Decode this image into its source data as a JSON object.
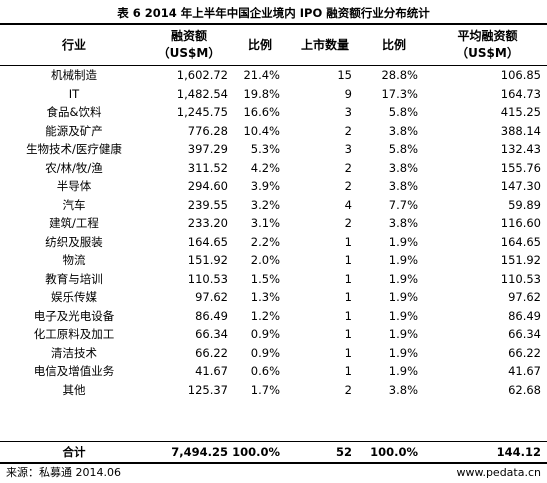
{
  "title": "表 6   2014 年上半年中国企业境内 IPO 融资额行业分布统计",
  "header": {
    "industry": "行业",
    "amount_line1": "融资额",
    "amount_line2": "（US$M）",
    "ratio1": "比例",
    "count": "上市数量",
    "ratio2": "比例",
    "avg_line1": "平均融资额",
    "avg_line2": "（US$M）"
  },
  "rows": [
    {
      "industry": "机械制造",
      "amount": "1,602.72",
      "ratio1": "21.4%",
      "count": "15",
      "ratio2": "28.8%",
      "avg": "106.85"
    },
    {
      "industry": "IT",
      "amount": "1,482.54",
      "ratio1": "19.8%",
      "count": "9",
      "ratio2": "17.3%",
      "avg": "164.73"
    },
    {
      "industry": "食品&饮料",
      "amount": "1,245.75",
      "ratio1": "16.6%",
      "count": "3",
      "ratio2": "5.8%",
      "avg": "415.25"
    },
    {
      "industry": "能源及矿产",
      "amount": "776.28",
      "ratio1": "10.4%",
      "count": "2",
      "ratio2": "3.8%",
      "avg": "388.14"
    },
    {
      "industry": "生物技术/医疗健康",
      "amount": "397.29",
      "ratio1": "5.3%",
      "count": "3",
      "ratio2": "5.8%",
      "avg": "132.43"
    },
    {
      "industry": "农/林/牧/渔",
      "amount": "311.52",
      "ratio1": "4.2%",
      "count": "2",
      "ratio2": "3.8%",
      "avg": "155.76"
    },
    {
      "industry": "半导体",
      "amount": "294.60",
      "ratio1": "3.9%",
      "count": "2",
      "ratio2": "3.8%",
      "avg": "147.30"
    },
    {
      "industry": "汽车",
      "amount": "239.55",
      "ratio1": "3.2%",
      "count": "4",
      "ratio2": "7.7%",
      "avg": "59.89"
    },
    {
      "industry": "建筑/工程",
      "amount": "233.20",
      "ratio1": "3.1%",
      "count": "2",
      "ratio2": "3.8%",
      "avg": "116.60"
    },
    {
      "industry": "纺织及服装",
      "amount": "164.65",
      "ratio1": "2.2%",
      "count": "1",
      "ratio2": "1.9%",
      "avg": "164.65"
    },
    {
      "industry": "物流",
      "amount": "151.92",
      "ratio1": "2.0%",
      "count": "1",
      "ratio2": "1.9%",
      "avg": "151.92"
    },
    {
      "industry": "教育与培训",
      "amount": "110.53",
      "ratio1": "1.5%",
      "count": "1",
      "ratio2": "1.9%",
      "avg": "110.53"
    },
    {
      "industry": "娱乐传媒",
      "amount": "97.62",
      "ratio1": "1.3%",
      "count": "1",
      "ratio2": "1.9%",
      "avg": "97.62"
    },
    {
      "industry": "电子及光电设备",
      "amount": "86.49",
      "ratio1": "1.2%",
      "count": "1",
      "ratio2": "1.9%",
      "avg": "86.49"
    },
    {
      "industry": "化工原料及加工",
      "amount": "66.34",
      "ratio1": "0.9%",
      "count": "1",
      "ratio2": "1.9%",
      "avg": "66.34"
    },
    {
      "industry": "清洁技术",
      "amount": "66.22",
      "ratio1": "0.9%",
      "count": "1",
      "ratio2": "1.9%",
      "avg": "66.22"
    },
    {
      "industry": "电信及增值业务",
      "amount": "41.67",
      "ratio1": "0.6%",
      "count": "1",
      "ratio2": "1.9%",
      "avg": "41.67"
    },
    {
      "industry": "其他",
      "amount": "125.37",
      "ratio1": "1.7%",
      "count": "2",
      "ratio2": "3.8%",
      "avg": "62.68"
    }
  ],
  "total": {
    "industry": "合计",
    "amount": "7,494.25",
    "ratio1": "100.0%",
    "count": "52",
    "ratio2": "100.0%",
    "avg": "144.12"
  },
  "footer": {
    "source": "来源：私募通  2014.06",
    "website": "www.pedata.cn"
  }
}
